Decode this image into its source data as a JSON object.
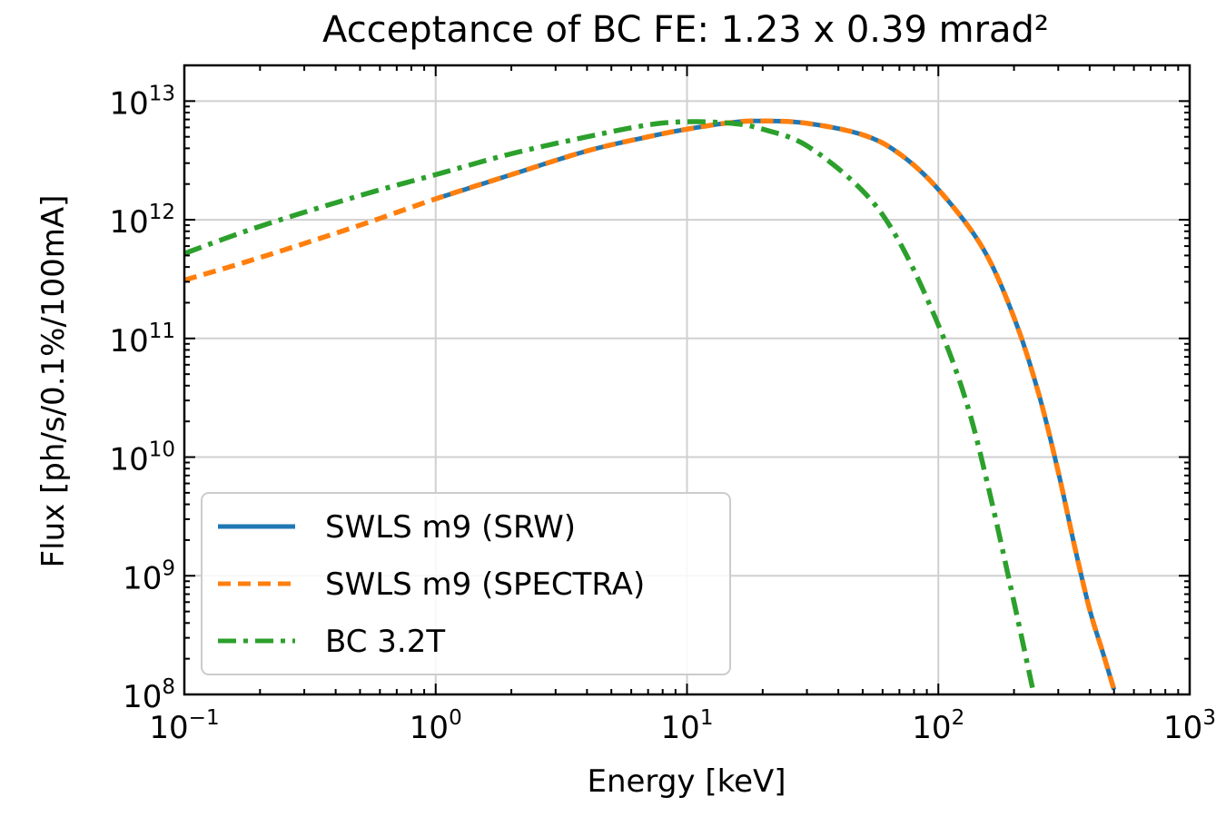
{
  "chart_data": {
    "type": "line",
    "title": "Acceptance of BC FE: 1.23 x 0.39 mrad²",
    "xlabel": "Energy [keV]",
    "ylabel": "Flux [ph/s/0.1%/100mA]",
    "x_scale": "log",
    "y_scale": "log",
    "xlim": [
      0.1,
      1000
    ],
    "ylim": [
      100000000.0,
      20000000000000.0
    ],
    "grid": true,
    "legend_position": "lower-left",
    "x_ticks": [
      {
        "value": 0.1,
        "base": "10",
        "exp": "−1"
      },
      {
        "value": 1,
        "base": "10",
        "exp": "0"
      },
      {
        "value": 10,
        "base": "10",
        "exp": "1"
      },
      {
        "value": 100,
        "base": "10",
        "exp": "2"
      },
      {
        "value": 1000,
        "base": "10",
        "exp": "3"
      }
    ],
    "y_ticks": [
      {
        "value": 100000000.0,
        "base": "10",
        "exp": "8"
      },
      {
        "value": 1000000000.0,
        "base": "10",
        "exp": "9"
      },
      {
        "value": 10000000000.0,
        "base": "10",
        "exp": "10"
      },
      {
        "value": 100000000000.0,
        "base": "10",
        "exp": "11"
      },
      {
        "value": 1000000000000.0,
        "base": "10",
        "exp": "12"
      },
      {
        "value": 10000000000000.0,
        "base": "10",
        "exp": "13"
      }
    ],
    "series": [
      {
        "name": "SWLS m9 (SRW)",
        "color": "#1f77b4",
        "style": "solid",
        "x": [
          1,
          2,
          4,
          7,
          10,
          15,
          20,
          30,
          50,
          70,
          100,
          150,
          200,
          250,
          300,
          350,
          400,
          450,
          500
        ],
        "y": [
          1500000000000.0,
          2400000000000.0,
          3800000000000.0,
          5000000000000.0,
          5800000000000.0,
          6600000000000.0,
          6800000000000.0,
          6500000000000.0,
          5200000000000.0,
          3600000000000.0,
          1800000000000.0,
          580000000000.0,
          150000000000.0,
          35000000000.0,
          7500000000.0,
          1700000000.0,
          520000000.0,
          230000000.0,
          110000000.0
        ]
      },
      {
        "name": "SWLS m9 (SPECTRA)",
        "color": "#ff7f0e",
        "style": "dashed",
        "x": [
          0.1,
          0.2,
          0.5,
          1,
          2,
          4,
          7,
          10,
          15,
          20,
          30,
          50,
          70,
          100,
          150,
          200,
          250,
          300,
          350,
          400,
          450,
          500
        ],
        "y": [
          310000000000.0,
          480000000000.0,
          900000000000.0,
          1500000000000.0,
          2400000000000.0,
          3800000000000.0,
          5000000000000.0,
          5800000000000.0,
          6600000000000.0,
          6800000000000.0,
          6500000000000.0,
          5200000000000.0,
          3600000000000.0,
          1800000000000.0,
          580000000000.0,
          150000000000.0,
          35000000000.0,
          7500000000.0,
          1700000000.0,
          520000000.0,
          230000000.0,
          110000000.0
        ]
      },
      {
        "name": "BC 3.2T",
        "color": "#2ca02c",
        "style": "dashdot",
        "x": [
          0.1,
          0.2,
          0.5,
          1,
          2,
          4,
          7,
          10,
          15,
          20,
          30,
          50,
          70,
          100,
          130,
          160,
          200,
          240
        ],
        "y": [
          520000000000.0,
          880000000000.0,
          1600000000000.0,
          2400000000000.0,
          3600000000000.0,
          5000000000000.0,
          6300000000000.0,
          6700000000000.0,
          6500000000000.0,
          5800000000000.0,
          4200000000000.0,
          1750000000000.0,
          650000000000.0,
          130000000000.0,
          28000000000.0,
          5000000000.0,
          600000000.0,
          100000000.0
        ]
      }
    ]
  }
}
